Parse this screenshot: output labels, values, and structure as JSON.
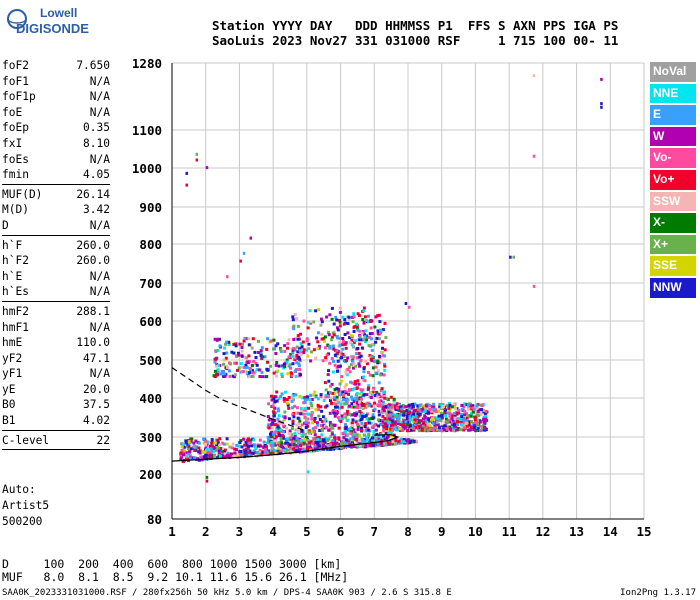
{
  "logo": {
    "line1": "Lowell",
    "line2": "DIGISONDE"
  },
  "header": {
    "line1": "Station YYYY DAY   DDD HHMMSS P1  FFS S AXN PPS IGA PS",
    "line2": "SaoLuis 2023 Nov27 331 031000 RSF     1 715 100 00- 11"
  },
  "params": [
    {
      "k": "foF2",
      "v": "7.650"
    },
    {
      "k": "foF1",
      "v": "N/A"
    },
    {
      "k": "foF1p",
      "v": "N/A"
    },
    {
      "k": "foE",
      "v": "N/A"
    },
    {
      "k": "foEp",
      "v": "0.35"
    },
    {
      "k": "fxI",
      "v": "8.10"
    },
    {
      "k": "foEs",
      "v": "N/A"
    },
    {
      "k": "fmin",
      "v": "4.05"
    },
    {
      "sep": true
    },
    {
      "k": "MUF(D)",
      "v": "26.14"
    },
    {
      "k": "M(D)",
      "v": "3.42"
    },
    {
      "k": "D",
      "v": "N/A"
    },
    {
      "sep": true
    },
    {
      "k": "h`F",
      "v": "260.0"
    },
    {
      "k": "h`F2",
      "v": "260.0"
    },
    {
      "k": "h`E",
      "v": "N/A"
    },
    {
      "k": "h`Es",
      "v": "N/A"
    },
    {
      "sep": true
    },
    {
      "k": "hmF2",
      "v": "288.1"
    },
    {
      "k": "hmF1",
      "v": "N/A"
    },
    {
      "k": "hmE",
      "v": "110.0"
    },
    {
      "k": "yF2",
      "v": "47.1"
    },
    {
      "k": "yF1",
      "v": "N/A"
    },
    {
      "k": "yE",
      "v": "20.0"
    },
    {
      "k": "B0",
      "v": "37.5"
    },
    {
      "k": "B1",
      "v": "4.02"
    },
    {
      "sep": true
    },
    {
      "k": "C-level",
      "v": "22"
    },
    {
      "sep": true
    }
  ],
  "auto": {
    "l1": "Auto:",
    "l2": "Artist5",
    "l3": "500200"
  },
  "legend": [
    {
      "label": "NoVal",
      "color": "#a0a0a0"
    },
    {
      "label": "NNE",
      "color": "#00e5f0"
    },
    {
      "label": "E",
      "color": "#3aa0ff"
    },
    {
      "label": "W",
      "color": "#b000b0"
    },
    {
      "label": "Vo-",
      "color": "#ff4aa0"
    },
    {
      "label": "Vo+",
      "color": "#f0002a"
    },
    {
      "label": "SSW",
      "color": "#f5b5b5"
    },
    {
      "label": "X-",
      "color": "#007a00"
    },
    {
      "label": "X+",
      "color": "#6ab04c"
    },
    {
      "label": "SSE",
      "color": "#d4d400"
    },
    {
      "label": "NNW",
      "color": "#1a1acc"
    }
  ],
  "dmuf": {
    "line1": "D     100  200  400  600  800 1000 1500 3000 [km]",
    "line2": "MUF   8.0  8.1  8.5  9.2 10.1 11.6 15.6 26.1 [MHz]"
  },
  "footer": "SAA0K_2023331031000.RSF / 280fx256h 50 kHz 5.0 km / DPS-4 SAA0K 903 / 2.6 S 315.8 E",
  "version": "Ion2Png 1.3.17",
  "chart_data": {
    "type": "scatter",
    "title": "",
    "xlabel": "",
    "ylabel": "",
    "xlim": [
      1,
      15
    ],
    "ylim": [
      80,
      1280
    ],
    "x_ticks": [
      "1",
      "2",
      "3",
      "4",
      "5",
      "6",
      "7",
      "8",
      "9",
      "10",
      "11",
      "12",
      "13",
      "14",
      "15"
    ],
    "y_ticks": [
      "80",
      "200",
      "300",
      "400",
      "500",
      "600",
      "700",
      "800",
      "900",
      "1000",
      "1100",
      "1280"
    ],
    "y_tick_values": [
      80,
      200,
      300,
      400,
      500,
      600,
      700,
      800,
      900,
      1000,
      1100,
      1280
    ],
    "grid": true,
    "legend_position": "right",
    "series": [
      {
        "name": "NoVal",
        "color": "#a0a0a0"
      },
      {
        "name": "NNE",
        "color": "#00e5f0"
      },
      {
        "name": "E",
        "color": "#3aa0ff"
      },
      {
        "name": "W",
        "color": "#b000b0"
      },
      {
        "name": "Vo-",
        "color": "#ff4aa0"
      },
      {
        "name": "Vo+",
        "color": "#f0002a"
      },
      {
        "name": "SSW",
        "color": "#f5b5b5"
      },
      {
        "name": "X-",
        "color": "#007a00"
      },
      {
        "name": "X+",
        "color": "#6ab04c"
      },
      {
        "name": "SSE",
        "color": "#d4d400"
      },
      {
        "name": "NNW",
        "color": "#1a1acc"
      }
    ],
    "trace_solid": [
      [
        1,
        235
      ],
      [
        2,
        240
      ],
      [
        3,
        245
      ],
      [
        4,
        252
      ],
      [
        5,
        262
      ],
      [
        6,
        275
      ],
      [
        6.8,
        283
      ],
      [
        7.4,
        290
      ],
      [
        7.7,
        300
      ],
      [
        7.5,
        306
      ],
      [
        7,
        305
      ]
    ],
    "trace_dashed": [
      [
        1,
        480
      ],
      [
        1.5,
        450
      ],
      [
        2,
        420
      ],
      [
        2.5,
        395
      ],
      [
        3,
        378
      ],
      [
        3.5,
        362
      ],
      [
        4,
        345
      ],
      [
        4.5,
        330
      ],
      [
        4.9,
        318
      ]
    ],
    "scatter_clusters": [
      {
        "f": [
          1.2,
          8.2
        ],
        "h": [
          235,
          300
        ],
        "n": 900
      },
      {
        "f": [
          3.8,
          7.6
        ],
        "h": [
          280,
          420
        ],
        "n": 700
      },
      {
        "f": [
          7.2,
          10.3
        ],
        "h": [
          320,
          390
        ],
        "n": 700
      },
      {
        "f": [
          5.5,
          7.3
        ],
        "h": [
          380,
          620
        ],
        "n": 260
      },
      {
        "f": [
          2.2,
          4.8
        ],
        "h": [
          460,
          560
        ],
        "n": 220
      },
      {
        "f": [
          4.5,
          7.2
        ],
        "h": [
          500,
          640
        ],
        "n": 150
      }
    ],
    "outliers": [
      [
        1.4,
        960
      ],
      [
        1.4,
        990
      ],
      [
        1.7,
        1040
      ],
      [
        1.7,
        1025
      ],
      [
        2,
        1005
      ],
      [
        3,
        760
      ],
      [
        3.1,
        780
      ],
      [
        3.3,
        820
      ],
      [
        2.6,
        720
      ],
      [
        11,
        770
      ],
      [
        11.1,
        770
      ],
      [
        11.7,
        1250
      ],
      [
        11.7,
        1035
      ],
      [
        11.7,
        695
      ],
      [
        13.7,
        1240
      ],
      [
        13.7,
        1175
      ],
      [
        13.7,
        1165
      ],
      [
        2,
        195
      ],
      [
        2,
        185
      ],
      [
        5,
        210
      ],
      [
        7.9,
        650
      ],
      [
        8,
        640
      ]
    ]
  }
}
